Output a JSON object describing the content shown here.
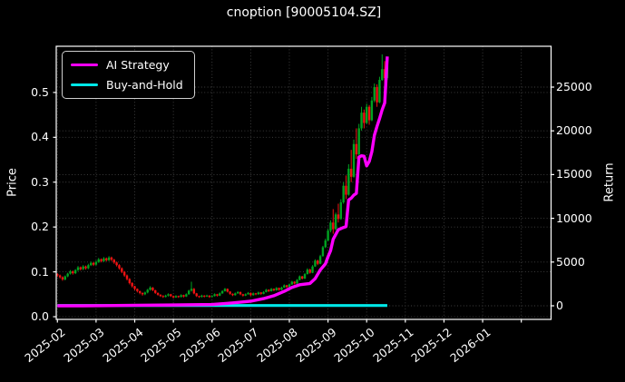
{
  "title": "cnoption [90005104.SZ]",
  "legend": {
    "items": [
      {
        "label": "AI Strategy",
        "color": "#ff00ff"
      },
      {
        "label": "Buy-and-Hold",
        "color": "#00e8e8"
      }
    ]
  },
  "axes": {
    "left_label": "Price",
    "right_label": "Return"
  },
  "chart_data": {
    "type": "candlestick+line",
    "title": "cnoption [90005104.SZ]",
    "xlabel": "",
    "ylabel_left": "Price",
    "ylabel_right": "Return",
    "grid": true,
    "legend_position": "upper left",
    "background": "#000000",
    "up_color": "#00a221",
    "down_color": "#f01212",
    "x_tick_labels": [
      "2025-02",
      "2025-03",
      "2025-04",
      "2025-05",
      "2025-06",
      "2025-07",
      "2025-08",
      "2025-09",
      "2025-10",
      "2025-11",
      "2025-12",
      "2026-01",
      ""
    ],
    "price_axis": {
      "tick_labels": [
        "0.0",
        "0.1",
        "0.2",
        "0.3",
        "0.4",
        "0.5"
      ],
      "tick_values": [
        0.0,
        0.1,
        0.2,
        0.3,
        0.4,
        0.5
      ],
      "range": [
        -0.006,
        0.603
      ]
    },
    "return_axis": {
      "tick_labels": [
        "0",
        "5000",
        "10000",
        "15000",
        "20000",
        "25000"
      ],
      "tick_values": [
        0,
        5000,
        10000,
        15000,
        20000,
        25000
      ],
      "range": [
        -1556,
        29668
      ]
    },
    "months_range": [
      -0.03,
      12.77
    ],
    "candles_per_month": 15,
    "candles": [
      [
        0.095,
        0.097,
        0.089,
        0.092
      ],
      [
        0.092,
        0.094,
        0.085,
        0.088
      ],
      [
        0.088,
        0.09,
        0.08,
        0.083
      ],
      [
        0.083,
        0.092,
        0.081,
        0.09
      ],
      [
        0.09,
        0.098,
        0.088,
        0.096
      ],
      [
        0.096,
        0.104,
        0.094,
        0.101
      ],
      [
        0.101,
        0.103,
        0.094,
        0.097
      ],
      [
        0.097,
        0.106,
        0.095,
        0.104
      ],
      [
        0.104,
        0.113,
        0.102,
        0.11
      ],
      [
        0.11,
        0.112,
        0.103,
        0.106
      ],
      [
        0.106,
        0.115,
        0.104,
        0.112
      ],
      [
        0.112,
        0.114,
        0.105,
        0.108
      ],
      [
        0.108,
        0.118,
        0.106,
        0.115
      ],
      [
        0.115,
        0.123,
        0.113,
        0.12
      ],
      [
        0.12,
        0.122,
        0.113,
        0.116
      ],
      [
        0.116,
        0.125,
        0.114,
        0.122
      ],
      [
        0.122,
        0.131,
        0.12,
        0.128
      ],
      [
        0.128,
        0.13,
        0.121,
        0.124
      ],
      [
        0.124,
        0.133,
        0.122,
        0.13
      ],
      [
        0.13,
        0.132,
        0.123,
        0.126
      ],
      [
        0.126,
        0.135,
        0.124,
        0.132
      ],
      [
        0.132,
        0.134,
        0.124,
        0.127
      ],
      [
        0.127,
        0.129,
        0.118,
        0.121
      ],
      [
        0.121,
        0.123,
        0.112,
        0.115
      ],
      [
        0.115,
        0.117,
        0.105,
        0.108
      ],
      [
        0.108,
        0.11,
        0.097,
        0.1
      ],
      [
        0.1,
        0.102,
        0.089,
        0.092
      ],
      [
        0.092,
        0.094,
        0.081,
        0.084
      ],
      [
        0.084,
        0.086,
        0.072,
        0.075
      ],
      [
        0.075,
        0.077,
        0.065,
        0.068
      ],
      [
        0.068,
        0.069,
        0.059,
        0.062
      ],
      [
        0.062,
        0.063,
        0.054,
        0.057
      ],
      [
        0.057,
        0.058,
        0.05,
        0.053
      ],
      [
        0.053,
        0.054,
        0.047,
        0.05
      ],
      [
        0.05,
        0.056,
        0.048,
        0.054
      ],
      [
        0.054,
        0.062,
        0.052,
        0.06
      ],
      [
        0.06,
        0.068,
        0.058,
        0.065
      ],
      [
        0.065,
        0.066,
        0.057,
        0.059
      ],
      [
        0.059,
        0.06,
        0.051,
        0.053
      ],
      [
        0.053,
        0.054,
        0.047,
        0.049
      ],
      [
        0.049,
        0.05,
        0.044,
        0.046
      ],
      [
        0.046,
        0.048,
        0.042,
        0.044
      ],
      [
        0.044,
        0.049,
        0.043,
        0.047
      ],
      [
        0.047,
        0.052,
        0.045,
        0.05
      ],
      [
        0.05,
        0.051,
        0.044,
        0.046
      ],
      [
        0.046,
        0.047,
        0.041,
        0.043
      ],
      [
        0.043,
        0.048,
        0.042,
        0.046
      ],
      [
        0.046,
        0.047,
        0.042,
        0.044
      ],
      [
        0.044,
        0.05,
        0.043,
        0.048
      ],
      [
        0.048,
        0.049,
        0.043,
        0.045
      ],
      [
        0.045,
        0.052,
        0.044,
        0.05
      ],
      [
        0.05,
        0.06,
        0.049,
        0.058
      ],
      [
        0.058,
        0.078,
        0.056,
        0.062
      ],
      [
        0.062,
        0.064,
        0.05,
        0.052
      ],
      [
        0.052,
        0.053,
        0.044,
        0.046
      ],
      [
        0.046,
        0.047,
        0.042,
        0.044
      ],
      [
        0.044,
        0.049,
        0.043,
        0.047
      ],
      [
        0.047,
        0.048,
        0.043,
        0.045
      ],
      [
        0.045,
        0.049,
        0.044,
        0.047
      ],
      [
        0.047,
        0.048,
        0.042,
        0.044
      ],
      [
        0.044,
        0.048,
        0.043,
        0.046
      ],
      [
        0.046,
        0.052,
        0.045,
        0.05
      ],
      [
        0.05,
        0.051,
        0.045,
        0.047
      ],
      [
        0.047,
        0.054,
        0.046,
        0.052
      ],
      [
        0.052,
        0.059,
        0.051,
        0.057
      ],
      [
        0.057,
        0.064,
        0.056,
        0.062
      ],
      [
        0.062,
        0.063,
        0.054,
        0.056
      ],
      [
        0.056,
        0.057,
        0.049,
        0.051
      ],
      [
        0.051,
        0.052,
        0.046,
        0.048
      ],
      [
        0.048,
        0.054,
        0.047,
        0.052
      ],
      [
        0.052,
        0.057,
        0.051,
        0.055
      ],
      [
        0.055,
        0.056,
        0.048,
        0.05
      ],
      [
        0.05,
        0.051,
        0.045,
        0.047
      ],
      [
        0.047,
        0.052,
        0.046,
        0.05
      ],
      [
        0.05,
        0.055,
        0.049,
        0.053
      ],
      [
        0.053,
        0.054,
        0.046,
        0.048
      ],
      [
        0.048,
        0.054,
        0.047,
        0.052
      ],
      [
        0.052,
        0.053,
        0.048,
        0.05
      ],
      [
        0.05,
        0.056,
        0.049,
        0.054
      ],
      [
        0.054,
        0.055,
        0.049,
        0.051
      ],
      [
        0.051,
        0.057,
        0.05,
        0.055
      ],
      [
        0.055,
        0.062,
        0.054,
        0.06
      ],
      [
        0.06,
        0.061,
        0.055,
        0.057
      ],
      [
        0.057,
        0.064,
        0.056,
        0.062
      ],
      [
        0.062,
        0.063,
        0.057,
        0.059
      ],
      [
        0.059,
        0.066,
        0.058,
        0.064
      ],
      [
        0.064,
        0.065,
        0.058,
        0.06
      ],
      [
        0.06,
        0.067,
        0.059,
        0.065
      ],
      [
        0.065,
        0.072,
        0.064,
        0.07
      ],
      [
        0.07,
        0.071,
        0.064,
        0.066
      ],
      [
        0.066,
        0.074,
        0.065,
        0.072
      ],
      [
        0.072,
        0.08,
        0.071,
        0.078
      ],
      [
        0.078,
        0.079,
        0.072,
        0.074
      ],
      [
        0.074,
        0.084,
        0.073,
        0.082
      ],
      [
        0.082,
        0.092,
        0.081,
        0.09
      ],
      [
        0.09,
        0.091,
        0.083,
        0.085
      ],
      [
        0.085,
        0.097,
        0.084,
        0.095
      ],
      [
        0.095,
        0.108,
        0.094,
        0.105
      ],
      [
        0.105,
        0.107,
        0.096,
        0.098
      ],
      [
        0.098,
        0.115,
        0.097,
        0.112
      ],
      [
        0.112,
        0.128,
        0.111,
        0.125
      ],
      [
        0.125,
        0.127,
        0.115,
        0.118
      ],
      [
        0.118,
        0.138,
        0.117,
        0.135
      ],
      [
        0.135,
        0.158,
        0.134,
        0.155
      ],
      [
        0.155,
        0.174,
        0.153,
        0.17
      ],
      [
        0.17,
        0.196,
        0.168,
        0.192
      ],
      [
        0.192,
        0.215,
        0.188,
        0.21
      ],
      [
        0.21,
        0.24,
        0.185,
        0.195
      ],
      [
        0.195,
        0.232,
        0.193,
        0.228
      ],
      [
        0.228,
        0.252,
        0.21,
        0.218
      ],
      [
        0.218,
        0.262,
        0.216,
        0.255
      ],
      [
        0.255,
        0.3,
        0.252,
        0.292
      ],
      [
        0.292,
        0.315,
        0.262,
        0.272
      ],
      [
        0.272,
        0.34,
        0.27,
        0.33
      ],
      [
        0.33,
        0.372,
        0.3,
        0.312
      ],
      [
        0.312,
        0.395,
        0.31,
        0.385
      ],
      [
        0.385,
        0.42,
        0.352,
        0.362
      ],
      [
        0.362,
        0.43,
        0.36,
        0.42
      ],
      [
        0.42,
        0.468,
        0.415,
        0.455
      ],
      [
        0.455,
        0.462,
        0.42,
        0.432
      ],
      [
        0.432,
        0.475,
        0.43,
        0.468
      ],
      [
        0.468,
        0.472,
        0.428,
        0.438
      ],
      [
        0.438,
        0.49,
        0.436,
        0.482
      ],
      [
        0.482,
        0.52,
        0.478,
        0.512
      ],
      [
        0.512,
        0.518,
        0.468,
        0.478
      ],
      [
        0.478,
        0.535,
        0.476,
        0.528
      ],
      [
        0.528,
        0.585,
        0.526,
        0.552
      ],
      [
        0.552,
        0.57,
        0.52,
        0.532
      ],
      [
        0.532,
        0.568,
        0.528,
        0.56
      ]
    ],
    "series": [
      {
        "name": "AI Strategy",
        "axis": "return",
        "color": "#ff00ff",
        "points": [
          [
            0,
            0
          ],
          [
            10,
            0
          ],
          [
            20,
            20
          ],
          [
            31,
            60
          ],
          [
            45,
            90
          ],
          [
            60,
            150
          ],
          [
            66,
            280
          ],
          [
            70,
            380
          ],
          [
            75,
            520
          ],
          [
            80,
            820
          ],
          [
            84,
            1150
          ],
          [
            88,
            1650
          ],
          [
            91,
            2100
          ],
          [
            94,
            2400
          ],
          [
            98,
            2550
          ],
          [
            100,
            3100
          ],
          [
            102,
            4100
          ],
          [
            104,
            4800
          ],
          [
            105,
            5600
          ],
          [
            106,
            6300
          ],
          [
            107,
            7600
          ],
          [
            109,
            8700
          ],
          [
            111,
            8950
          ],
          [
            112,
            9050
          ],
          [
            113,
            12100
          ],
          [
            114,
            12300
          ],
          [
            115,
            12650
          ],
          [
            116,
            12850
          ],
          [
            117,
            17000
          ],
          [
            118,
            17150
          ],
          [
            119,
            17100
          ],
          [
            120,
            16000
          ],
          [
            121,
            16500
          ],
          [
            122,
            17600
          ],
          [
            123,
            19500
          ],
          [
            124,
            20500
          ],
          [
            125,
            21400
          ],
          [
            126,
            22400
          ],
          [
            127,
            23200
          ],
          [
            128,
            28500
          ]
        ]
      },
      {
        "name": "Buy-and-Hold",
        "axis": "return",
        "color": "#00e8e8",
        "points": [
          [
            0,
            30
          ],
          [
            128,
            30
          ]
        ]
      }
    ]
  }
}
